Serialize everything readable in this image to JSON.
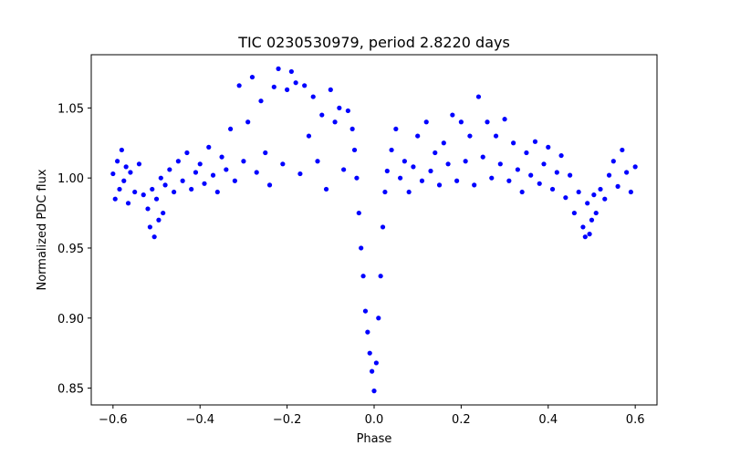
{
  "chart_data": {
    "type": "scatter",
    "title": "TIC 0230530979, period 2.8220 days",
    "xlabel": "Phase",
    "ylabel": "Normalized PDC flux",
    "xlim": [
      -0.65,
      0.65
    ],
    "ylim": [
      0.838,
      1.088
    ],
    "x_ticks": [
      -0.6,
      -0.4,
      -0.2,
      0.0,
      0.2,
      0.4,
      0.6
    ],
    "x_tick_labels": [
      "−0.6",
      "−0.4",
      "−0.2",
      "0.0",
      "0.2",
      "0.4",
      "0.6"
    ],
    "y_ticks": [
      0.85,
      0.9,
      0.95,
      1.0,
      1.05
    ],
    "y_tick_labels": [
      "0.85",
      "0.90",
      "0.95",
      "1.00",
      "1.05"
    ],
    "grid": false,
    "series": [
      {
        "name": "flux",
        "color": "#0000ff",
        "points": [
          [
            -0.6,
            1.003
          ],
          [
            -0.595,
            0.985
          ],
          [
            -0.59,
            1.012
          ],
          [
            -0.585,
            0.992
          ],
          [
            -0.58,
            1.02
          ],
          [
            -0.575,
            0.998
          ],
          [
            -0.57,
            1.008
          ],
          [
            -0.565,
            0.982
          ],
          [
            -0.56,
            1.004
          ],
          [
            -0.55,
            0.99
          ],
          [
            -0.54,
            1.01
          ],
          [
            -0.53,
            0.988
          ],
          [
            -0.52,
            0.978
          ],
          [
            -0.515,
            0.965
          ],
          [
            -0.51,
            0.992
          ],
          [
            -0.505,
            0.958
          ],
          [
            -0.5,
            0.985
          ],
          [
            -0.495,
            0.97
          ],
          [
            -0.49,
            1.0
          ],
          [
            -0.485,
            0.975
          ],
          [
            -0.48,
            0.995
          ],
          [
            -0.47,
            1.006
          ],
          [
            -0.46,
            0.99
          ],
          [
            -0.45,
            1.012
          ],
          [
            -0.44,
            0.998
          ],
          [
            -0.43,
            1.018
          ],
          [
            -0.42,
            0.992
          ],
          [
            -0.41,
            1.004
          ],
          [
            -0.4,
            1.01
          ],
          [
            -0.39,
            0.996
          ],
          [
            -0.38,
            1.022
          ],
          [
            -0.37,
            1.002
          ],
          [
            -0.36,
            0.99
          ],
          [
            -0.35,
            1.015
          ],
          [
            -0.34,
            1.006
          ],
          [
            -0.33,
            1.035
          ],
          [
            -0.32,
            0.998
          ],
          [
            -0.31,
            1.066
          ],
          [
            -0.3,
            1.012
          ],
          [
            -0.29,
            1.04
          ],
          [
            -0.28,
            1.072
          ],
          [
            -0.27,
            1.004
          ],
          [
            -0.26,
            1.055
          ],
          [
            -0.25,
            1.018
          ],
          [
            -0.24,
            0.995
          ],
          [
            -0.23,
            1.065
          ],
          [
            -0.22,
            1.078
          ],
          [
            -0.21,
            1.01
          ],
          [
            -0.2,
            1.063
          ],
          [
            -0.19,
            1.076
          ],
          [
            -0.18,
            1.068
          ],
          [
            -0.17,
            1.003
          ],
          [
            -0.16,
            1.066
          ],
          [
            -0.15,
            1.03
          ],
          [
            -0.14,
            1.058
          ],
          [
            -0.13,
            1.012
          ],
          [
            -0.12,
            1.045
          ],
          [
            -0.11,
            0.992
          ],
          [
            -0.1,
            1.063
          ],
          [
            -0.09,
            1.04
          ],
          [
            -0.08,
            1.05
          ],
          [
            -0.07,
            1.006
          ],
          [
            -0.06,
            1.048
          ],
          [
            -0.05,
            1.035
          ],
          [
            -0.045,
            1.02
          ],
          [
            -0.04,
            1.0
          ],
          [
            -0.035,
            0.975
          ],
          [
            -0.03,
            0.95
          ],
          [
            -0.025,
            0.93
          ],
          [
            -0.02,
            0.905
          ],
          [
            -0.015,
            0.89
          ],
          [
            -0.01,
            0.875
          ],
          [
            -0.005,
            0.862
          ],
          [
            0.0,
            0.848
          ],
          [
            0.005,
            0.868
          ],
          [
            0.01,
            0.9
          ],
          [
            0.015,
            0.93
          ],
          [
            0.02,
            0.965
          ],
          [
            0.025,
            0.99
          ],
          [
            0.03,
            1.005
          ],
          [
            0.04,
            1.02
          ],
          [
            0.05,
            1.035
          ],
          [
            0.06,
            1.0
          ],
          [
            0.07,
            1.012
          ],
          [
            0.08,
            0.99
          ],
          [
            0.09,
            1.008
          ],
          [
            0.1,
            1.03
          ],
          [
            0.11,
            0.998
          ],
          [
            0.12,
            1.04
          ],
          [
            0.13,
            1.005
          ],
          [
            0.14,
            1.018
          ],
          [
            0.15,
            0.995
          ],
          [
            0.16,
            1.025
          ],
          [
            0.17,
            1.01
          ],
          [
            0.18,
            1.045
          ],
          [
            0.19,
            0.998
          ],
          [
            0.2,
            1.04
          ],
          [
            0.21,
            1.012
          ],
          [
            0.22,
            1.03
          ],
          [
            0.23,
            0.995
          ],
          [
            0.24,
            1.058
          ],
          [
            0.25,
            1.015
          ],
          [
            0.26,
            1.04
          ],
          [
            0.27,
            1.0
          ],
          [
            0.28,
            1.03
          ],
          [
            0.29,
            1.01
          ],
          [
            0.3,
            1.042
          ],
          [
            0.31,
            0.998
          ],
          [
            0.32,
            1.025
          ],
          [
            0.33,
            1.006
          ],
          [
            0.34,
            0.99
          ],
          [
            0.35,
            1.018
          ],
          [
            0.36,
            1.002
          ],
          [
            0.37,
            1.026
          ],
          [
            0.38,
            0.996
          ],
          [
            0.39,
            1.01
          ],
          [
            0.4,
            1.022
          ],
          [
            0.41,
            0.992
          ],
          [
            0.42,
            1.004
          ],
          [
            0.43,
            1.016
          ],
          [
            0.44,
            0.986
          ],
          [
            0.45,
            1.002
          ],
          [
            0.46,
            0.975
          ],
          [
            0.47,
            0.99
          ],
          [
            0.48,
            0.965
          ],
          [
            0.485,
            0.958
          ],
          [
            0.49,
            0.982
          ],
          [
            0.495,
            0.96
          ],
          [
            0.5,
            0.97
          ],
          [
            0.505,
            0.988
          ],
          [
            0.51,
            0.975
          ],
          [
            0.52,
            0.992
          ],
          [
            0.53,
            0.985
          ],
          [
            0.54,
            1.002
          ],
          [
            0.55,
            1.012
          ],
          [
            0.56,
            0.994
          ],
          [
            0.57,
            1.02
          ],
          [
            0.58,
            1.004
          ],
          [
            0.59,
            0.99
          ],
          [
            0.6,
            1.008
          ]
        ]
      }
    ]
  }
}
